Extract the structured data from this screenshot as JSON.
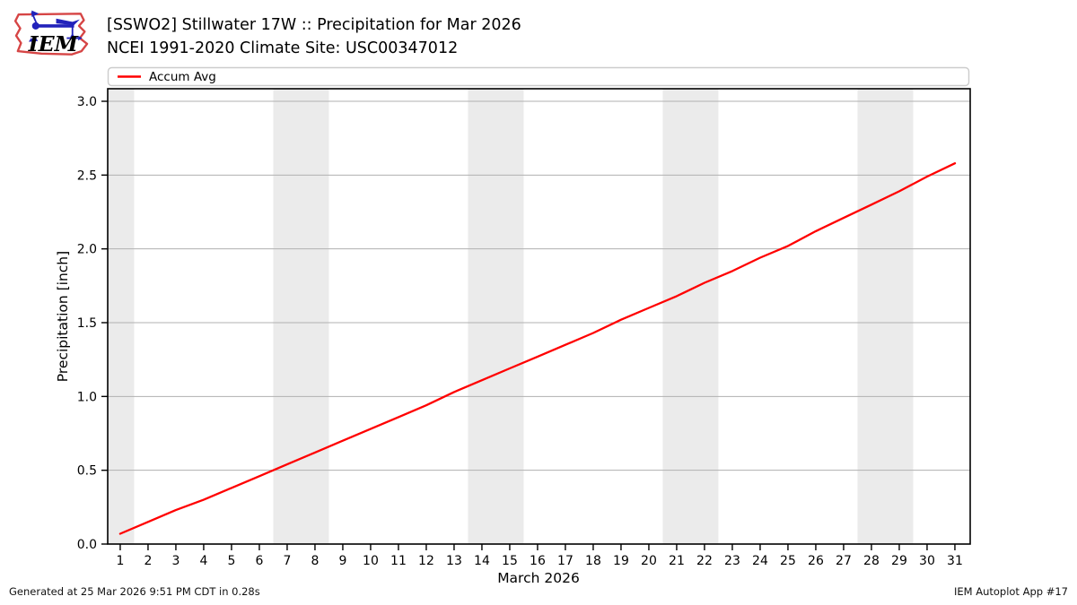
{
  "header": {
    "title_line1": "[SSWO2] Stillwater 17W :: Precipitation for Mar 2026",
    "title_line2": "NCEI 1991-2020 Climate Site: USC00347012",
    "logo_text": "IEM"
  },
  "legend": {
    "items": [
      {
        "label": "Accum Avg",
        "color": "#ff0000"
      }
    ]
  },
  "footer": {
    "left": "Generated at 25 Mar 2026 9:51 PM CDT in 0.28s",
    "right": "IEM Autoplot App #17"
  },
  "chart_data": {
    "type": "line",
    "xlabel": "March 2026",
    "ylabel": "Precipitation [inch]",
    "x": [
      1,
      2,
      3,
      4,
      5,
      6,
      7,
      8,
      9,
      10,
      11,
      12,
      13,
      14,
      15,
      16,
      17,
      18,
      19,
      20,
      21,
      22,
      23,
      24,
      25,
      26,
      27,
      28,
      29,
      30,
      31
    ],
    "series": [
      {
        "name": "Accum Avg",
        "color": "#ff0000",
        "values": [
          0.07,
          0.15,
          0.23,
          0.3,
          0.38,
          0.46,
          0.54,
          0.62,
          0.7,
          0.78,
          0.86,
          0.94,
          1.03,
          1.11,
          1.19,
          1.27,
          1.35,
          1.43,
          1.52,
          1.6,
          1.68,
          1.77,
          1.85,
          1.94,
          2.02,
          2.12,
          2.21,
          2.3,
          2.39,
          2.49,
          2.58
        ]
      }
    ],
    "xlim": [
      0.55,
      31.55
    ],
    "ylim": [
      0,
      3.085
    ],
    "yticks": [
      0.0,
      0.5,
      1.0,
      1.5,
      2.0,
      2.5,
      3.0
    ],
    "xticks": [
      1,
      2,
      3,
      4,
      5,
      6,
      7,
      8,
      9,
      10,
      11,
      12,
      13,
      14,
      15,
      16,
      17,
      18,
      19,
      20,
      21,
      22,
      23,
      24,
      25,
      26,
      27,
      28,
      29,
      30,
      31
    ],
    "grid": "horizontal",
    "grid_color": "#b0b0b0",
    "weekend_bands": [
      [
        0.55,
        1.5
      ],
      [
        6.5,
        8.5
      ],
      [
        13.5,
        15.5
      ],
      [
        20.5,
        22.5
      ],
      [
        27.5,
        29.5
      ]
    ],
    "band_color": "#ebebeb",
    "legend_position": "top",
    "line_width": 2.3
  }
}
